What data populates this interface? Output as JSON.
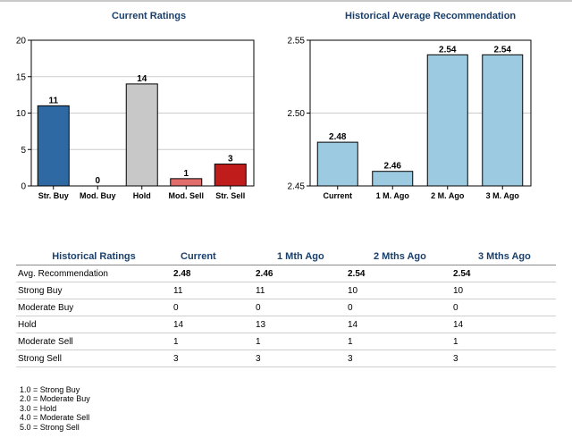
{
  "chart_data": [
    {
      "type": "bar",
      "title": "Current Ratings",
      "categories": [
        "Str. Buy",
        "Mod. Buy",
        "Hold",
        "Mod. Sell",
        "Str. Sell"
      ],
      "values": [
        11,
        0,
        14,
        1,
        3
      ],
      "colors": [
        "#2e69a3",
        "#6e9ccc",
        "#c8c8c8",
        "#e06c6c",
        "#c01c1c"
      ],
      "yticks": [
        0,
        5,
        10,
        15,
        20
      ],
      "ylim": [
        0,
        20
      ],
      "grid": true
    },
    {
      "type": "bar",
      "title": "Historical Average Recommendation",
      "categories": [
        "Current",
        "1 M. Ago",
        "2 M. Ago",
        "3 M. Ago"
      ],
      "values": [
        2.48,
        2.46,
        2.54,
        2.54
      ],
      "color": "#9ccae0",
      "yticks": [
        "2.45",
        "2.50",
        "2.55"
      ],
      "ylim": [
        2.45,
        2.55
      ],
      "grid": true
    }
  ],
  "table": {
    "headers": [
      "Historical Ratings",
      "Current",
      "1 Mth Ago",
      "2 Mths Ago",
      "3 Mths Ago"
    ],
    "rows": [
      {
        "label": "Avg. Recommendation",
        "values": [
          "2.48",
          "2.46",
          "2.54",
          "2.54"
        ]
      },
      {
        "label": "Strong Buy",
        "values": [
          "11",
          "11",
          "10",
          "10"
        ]
      },
      {
        "label": "Moderate Buy",
        "values": [
          "0",
          "0",
          "0",
          "0"
        ]
      },
      {
        "label": "Hold",
        "values": [
          "14",
          "13",
          "14",
          "14"
        ]
      },
      {
        "label": "Moderate Sell",
        "values": [
          "1",
          "1",
          "1",
          "1"
        ]
      },
      {
        "label": "Strong Sell",
        "values": [
          "3",
          "3",
          "3",
          "3"
        ]
      }
    ]
  },
  "legend": [
    "1.0 = Strong Buy",
    "2.0 = Moderate Buy",
    "3.0 = Hold",
    "4.0 = Moderate Sell",
    "5.0 = Strong Sell"
  ]
}
